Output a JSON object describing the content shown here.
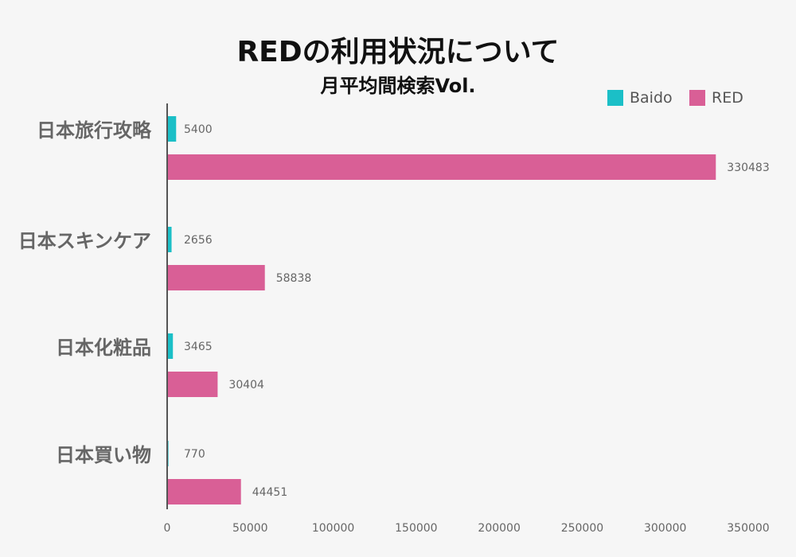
{
  "chart_data": {
    "type": "bar",
    "orientation": "horizontal",
    "title": "REDの利用状況について",
    "subtitle": "月平均間検索Vol.",
    "categories": [
      "日本旅行攻略",
      "日本スキンケア",
      "日本化粧品",
      "日本買い物"
    ],
    "series": [
      {
        "name": "Baido",
        "color": "#1bbfc7",
        "values": [
          5400,
          2656,
          3465,
          770
        ]
      },
      {
        "name": "RED",
        "color": "#d95f96",
        "values": [
          330483,
          58838,
          30404,
          44451
        ]
      }
    ],
    "xlim": [
      0,
      350000
    ],
    "x_ticks": [
      "0",
      "50000",
      "100000",
      "150000",
      "200000",
      "250000",
      "300000",
      "350000"
    ],
    "grid": false,
    "legend_position": "top-right",
    "data_labels": true
  }
}
